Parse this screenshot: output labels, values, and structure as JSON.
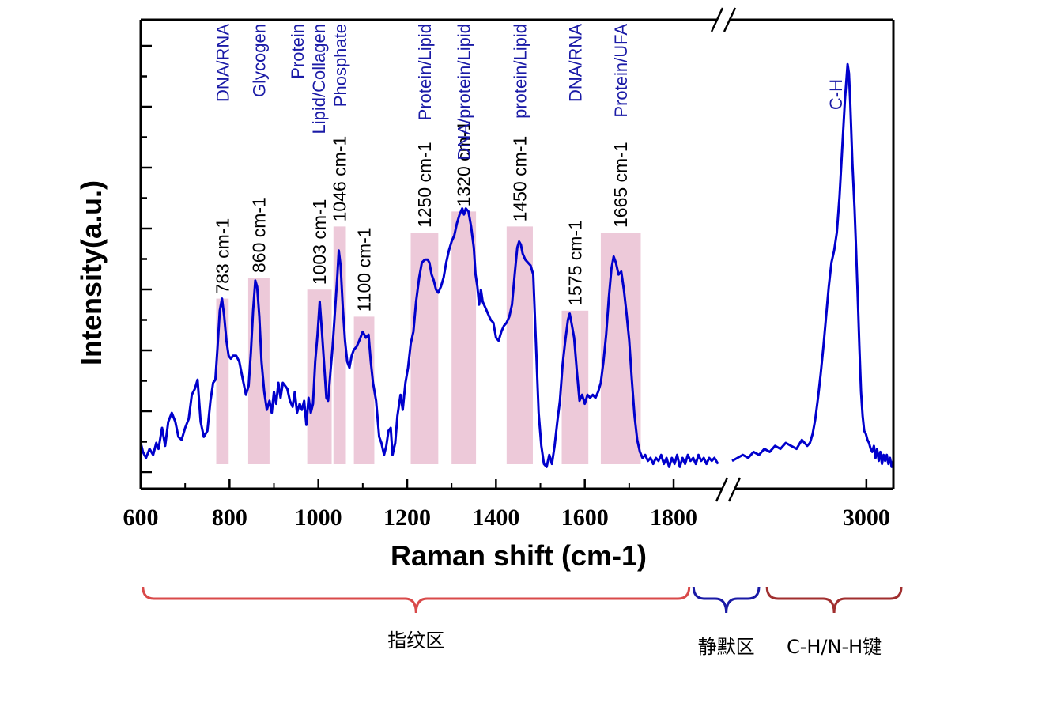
{
  "chart_data": {
    "type": "line",
    "title": "",
    "xlabel": "Raman shift (cm-1)",
    "ylabel": "Intensity(a.u.)",
    "xlim": [
      600,
      3100
    ],
    "axis_break": {
      "left_end": 1900,
      "right_start": 2500
    },
    "x_ticks": [
      600,
      800,
      1000,
      1200,
      1400,
      1600,
      1800,
      3000
    ],
    "x_tick_labels": [
      "600",
      "800",
      "1000",
      "1200",
      "1400",
      "1600",
      "1800",
      "3000"
    ],
    "grid": false,
    "series_color": "#0000cc",
    "band_color": "#edc9d9",
    "series": [
      {
        "values_left": [
          [
            600,
            0.1
          ],
          [
            605,
            0.07
          ],
          [
            612,
            0.05
          ],
          [
            620,
            0.08
          ],
          [
            628,
            0.06
          ],
          [
            635,
            0.1
          ],
          [
            640,
            0.08
          ],
          [
            648,
            0.15
          ],
          [
            655,
            0.09
          ],
          [
            662,
            0.17
          ],
          [
            670,
            0.2
          ],
          [
            678,
            0.17
          ],
          [
            685,
            0.12
          ],
          [
            692,
            0.11
          ],
          [
            700,
            0.15
          ],
          [
            708,
            0.18
          ],
          [
            715,
            0.26
          ],
          [
            722,
            0.28
          ],
          [
            728,
            0.31
          ],
          [
            735,
            0.17
          ],
          [
            742,
            0.12
          ],
          [
            750,
            0.14
          ],
          [
            757,
            0.24
          ],
          [
            763,
            0.3
          ],
          [
            768,
            0.31
          ],
          [
            773,
            0.42
          ],
          [
            778,
            0.54
          ],
          [
            783,
            0.58
          ],
          [
            788,
            0.52
          ],
          [
            793,
            0.44
          ],
          [
            798,
            0.39
          ],
          [
            803,
            0.38
          ],
          [
            808,
            0.39
          ],
          [
            815,
            0.39
          ],
          [
            822,
            0.37
          ],
          [
            830,
            0.31
          ],
          [
            837,
            0.26
          ],
          [
            843,
            0.29
          ],
          [
            848,
            0.4
          ],
          [
            853,
            0.54
          ],
          [
            858,
            0.64
          ],
          [
            862,
            0.62
          ],
          [
            867,
            0.52
          ],
          [
            872,
            0.37
          ],
          [
            878,
            0.27
          ],
          [
            884,
            0.21
          ],
          [
            890,
            0.24
          ],
          [
            895,
            0.2
          ],
          [
            900,
            0.27
          ],
          [
            905,
            0.23
          ],
          [
            910,
            0.3
          ],
          [
            915,
            0.25
          ],
          [
            920,
            0.3
          ],
          [
            925,
            0.29
          ],
          [
            930,
            0.28
          ],
          [
            936,
            0.24
          ],
          [
            942,
            0.22
          ],
          [
            947,
            0.27
          ],
          [
            952,
            0.2
          ],
          [
            958,
            0.23
          ],
          [
            963,
            0.21
          ],
          [
            968,
            0.24
          ],
          [
            973,
            0.16
          ],
          [
            978,
            0.25
          ],
          [
            983,
            0.2
          ],
          [
            988,
            0.23
          ],
          [
            993,
            0.37
          ],
          [
            998,
            0.46
          ],
          [
            1003,
            0.57
          ],
          [
            1008,
            0.47
          ],
          [
            1013,
            0.36
          ],
          [
            1018,
            0.25
          ],
          [
            1022,
            0.24
          ],
          [
            1027,
            0.33
          ],
          [
            1032,
            0.42
          ],
          [
            1038,
            0.55
          ],
          [
            1043,
            0.66
          ],
          [
            1046,
            0.74
          ],
          [
            1050,
            0.69
          ],
          [
            1055,
            0.55
          ],
          [
            1060,
            0.44
          ],
          [
            1065,
            0.37
          ],
          [
            1070,
            0.35
          ],
          [
            1075,
            0.39
          ],
          [
            1080,
            0.41
          ],
          [
            1086,
            0.42
          ],
          [
            1092,
            0.44
          ],
          [
            1100,
            0.47
          ],
          [
            1107,
            0.45
          ],
          [
            1113,
            0.46
          ],
          [
            1118,
            0.37
          ],
          [
            1123,
            0.3
          ],
          [
            1130,
            0.24
          ],
          [
            1137,
            0.12
          ],
          [
            1142,
            0.1
          ],
          [
            1148,
            0.06
          ],
          [
            1153,
            0.09
          ],
          [
            1158,
            0.14
          ],
          [
            1163,
            0.15
          ],
          [
            1167,
            0.06
          ],
          [
            1173,
            0.1
          ],
          [
            1178,
            0.19
          ],
          [
            1185,
            0.26
          ],
          [
            1190,
            0.21
          ],
          [
            1196,
            0.3
          ],
          [
            1202,
            0.35
          ],
          [
            1208,
            0.43
          ],
          [
            1214,
            0.47
          ],
          [
            1220,
            0.57
          ],
          [
            1227,
            0.65
          ],
          [
            1233,
            0.7
          ],
          [
            1240,
            0.71
          ],
          [
            1246,
            0.71
          ],
          [
            1250,
            0.7
          ],
          [
            1255,
            0.66
          ],
          [
            1260,
            0.64
          ],
          [
            1265,
            0.61
          ],
          [
            1270,
            0.6
          ],
          [
            1276,
            0.62
          ],
          [
            1282,
            0.65
          ],
          [
            1288,
            0.7
          ],
          [
            1294,
            0.74
          ],
          [
            1300,
            0.77
          ],
          [
            1306,
            0.79
          ],
          [
            1312,
            0.83
          ],
          [
            1318,
            0.86
          ],
          [
            1324,
            0.88
          ],
          [
            1328,
            0.86
          ],
          [
            1332,
            0.88
          ],
          [
            1338,
            0.87
          ],
          [
            1344,
            0.82
          ],
          [
            1350,
            0.75
          ],
          [
            1354,
            0.66
          ],
          [
            1358,
            0.62
          ],
          [
            1362,
            0.56
          ],
          [
            1366,
            0.61
          ],
          [
            1370,
            0.57
          ],
          [
            1376,
            0.55
          ],
          [
            1382,
            0.53
          ],
          [
            1388,
            0.51
          ],
          [
            1394,
            0.5
          ],
          [
            1400,
            0.45
          ],
          [
            1406,
            0.44
          ],
          [
            1412,
            0.47
          ],
          [
            1418,
            0.49
          ],
          [
            1424,
            0.5
          ],
          [
            1430,
            0.52
          ],
          [
            1436,
            0.56
          ],
          [
            1442,
            0.66
          ],
          [
            1448,
            0.75
          ],
          [
            1452,
            0.77
          ],
          [
            1456,
            0.76
          ],
          [
            1460,
            0.73
          ],
          [
            1466,
            0.71
          ],
          [
            1472,
            0.7
          ],
          [
            1478,
            0.69
          ],
          [
            1484,
            0.66
          ],
          [
            1490,
            0.43
          ],
          [
            1496,
            0.2
          ],
          [
            1502,
            0.09
          ],
          [
            1508,
            0.03
          ],
          [
            1514,
            0.02
          ],
          [
            1520,
            0.06
          ],
          [
            1526,
            0.03
          ],
          [
            1532,
            0.09
          ],
          [
            1538,
            0.17
          ],
          [
            1544,
            0.24
          ],
          [
            1550,
            0.36
          ],
          [
            1556,
            0.44
          ],
          [
            1562,
            0.51
          ],
          [
            1566,
            0.53
          ],
          [
            1570,
            0.5
          ],
          [
            1576,
            0.45
          ],
          [
            1582,
            0.34
          ],
          [
            1588,
            0.24
          ],
          [
            1594,
            0.26
          ],
          [
            1600,
            0.23
          ],
          [
            1606,
            0.26
          ],
          [
            1612,
            0.25
          ],
          [
            1618,
            0.26
          ],
          [
            1624,
            0.25
          ],
          [
            1630,
            0.27
          ],
          [
            1636,
            0.3
          ],
          [
            1642,
            0.37
          ],
          [
            1648,
            0.46
          ],
          [
            1654,
            0.58
          ],
          [
            1660,
            0.68
          ],
          [
            1665,
            0.72
          ],
          [
            1670,
            0.7
          ],
          [
            1676,
            0.66
          ],
          [
            1682,
            0.67
          ],
          [
            1688,
            0.61
          ],
          [
            1694,
            0.53
          ],
          [
            1700,
            0.44
          ],
          [
            1706,
            0.31
          ],
          [
            1712,
            0.19
          ],
          [
            1718,
            0.11
          ],
          [
            1724,
            0.07
          ],
          [
            1730,
            0.05
          ],
          [
            1736,
            0.06
          ],
          [
            1742,
            0.04
          ],
          [
            1748,
            0.05
          ],
          [
            1754,
            0.03
          ],
          [
            1760,
            0.05
          ],
          [
            1766,
            0.04
          ],
          [
            1772,
            0.06
          ],
          [
            1778,
            0.03
          ],
          [
            1784,
            0.05
          ],
          [
            1790,
            0.02
          ],
          [
            1796,
            0.05
          ],
          [
            1802,
            0.03
          ],
          [
            1808,
            0.06
          ],
          [
            1814,
            0.02
          ],
          [
            1820,
            0.05
          ],
          [
            1826,
            0.03
          ],
          [
            1832,
            0.06
          ],
          [
            1838,
            0.04
          ],
          [
            1844,
            0.05
          ],
          [
            1850,
            0.03
          ],
          [
            1856,
            0.06
          ],
          [
            1862,
            0.04
          ],
          [
            1868,
            0.05
          ],
          [
            1874,
            0.03
          ],
          [
            1880,
            0.05
          ],
          [
            1886,
            0.04
          ],
          [
            1892,
            0.05
          ],
          [
            1900,
            0.03
          ]
        ],
        "values_right": [
          [
            2500,
            0.04
          ],
          [
            2520,
            0.05
          ],
          [
            2540,
            0.06
          ],
          [
            2560,
            0.05
          ],
          [
            2580,
            0.07
          ],
          [
            2600,
            0.06
          ],
          [
            2620,
            0.08
          ],
          [
            2640,
            0.07
          ],
          [
            2660,
            0.09
          ],
          [
            2680,
            0.08
          ],
          [
            2700,
            0.1
          ],
          [
            2720,
            0.09
          ],
          [
            2740,
            0.08
          ],
          [
            2760,
            0.11
          ],
          [
            2780,
            0.09
          ],
          [
            2790,
            0.1
          ],
          [
            2800,
            0.13
          ],
          [
            2810,
            0.18
          ],
          [
            2820,
            0.25
          ],
          [
            2830,
            0.33
          ],
          [
            2840,
            0.42
          ],
          [
            2850,
            0.52
          ],
          [
            2860,
            0.62
          ],
          [
            2870,
            0.7
          ],
          [
            2880,
            0.74
          ],
          [
            2890,
            0.8
          ],
          [
            2900,
            0.92
          ],
          [
            2910,
            1.08
          ],
          [
            2920,
            1.24
          ],
          [
            2930,
            1.36
          ],
          [
            2935,
            1.33
          ],
          [
            2940,
            1.23
          ],
          [
            2948,
            1.03
          ],
          [
            2956,
            0.88
          ],
          [
            2962,
            0.74
          ],
          [
            2968,
            0.58
          ],
          [
            2974,
            0.42
          ],
          [
            2980,
            0.27
          ],
          [
            2986,
            0.19
          ],
          [
            2992,
            0.14
          ],
          [
            2998,
            0.13
          ],
          [
            3004,
            0.11
          ],
          [
            3010,
            0.1
          ],
          [
            3016,
            0.08
          ],
          [
            3022,
            0.07
          ],
          [
            3028,
            0.09
          ],
          [
            3034,
            0.05
          ],
          [
            3040,
            0.08
          ],
          [
            3046,
            0.04
          ],
          [
            3052,
            0.07
          ],
          [
            3058,
            0.03
          ],
          [
            3064,
            0.06
          ],
          [
            3070,
            0.04
          ],
          [
            3076,
            0.06
          ],
          [
            3082,
            0.03
          ],
          [
            3088,
            0.05
          ],
          [
            3094,
            0.02
          ],
          [
            3100,
            0.04
          ]
        ]
      }
    ],
    "bands": [
      {
        "x0": 770,
        "x1": 798,
        "y": 0.58,
        "peak": "783 cm-1",
        "assignment": [
          "DNA/RNA"
        ]
      },
      {
        "x0": 842,
        "x1": 890,
        "y": 0.65,
        "peak": "860 cm-1",
        "assignment": [
          "Glycogen"
        ]
      },
      {
        "x0": 975,
        "x1": 1030,
        "y": 0.61,
        "peak": "1003 cm-1",
        "assignment": [
          "Protein",
          "Lipid/Collagen",
          "Phosphate"
        ]
      },
      {
        "x0": 1034,
        "x1": 1062,
        "y": 0.82,
        "peak": "1046 cm-1",
        "assignment": []
      },
      {
        "x0": 1080,
        "x1": 1126,
        "y": 0.52,
        "peak": "1100 cm-1",
        "assignment": []
      },
      {
        "x0": 1208,
        "x1": 1270,
        "y": 0.8,
        "peak": "1250 cm-1",
        "assignment": [
          "Protein/Lipid"
        ]
      },
      {
        "x0": 1300,
        "x1": 1355,
        "y": 0.87,
        "peak": "1320 cm-1",
        "assignment": [
          "DNA/protein/Lipid"
        ]
      },
      {
        "x0": 1424,
        "x1": 1483,
        "y": 0.82,
        "peak": "1450 cm-1",
        "assignment": [
          "protein/Lipid"
        ]
      },
      {
        "x0": 1548,
        "x1": 1608,
        "y": 0.54,
        "peak": "1575 cm-1",
        "assignment": [
          "DNA/RNA"
        ]
      },
      {
        "x0": 1636,
        "x1": 1726,
        "y": 0.8,
        "peak": "1665 cm-1",
        "assignment": [
          "Protein/UFA"
        ]
      }
    ],
    "annotations": [
      {
        "text": "C-H",
        "x": 2880,
        "y": 1.25
      }
    ],
    "regions": [
      {
        "label": "指纹区",
        "x0": 605,
        "x1": 1835,
        "color": "#d94a4a"
      },
      {
        "label": "静默区",
        "x0": 1845,
        "x1": 2600,
        "color": "#1a1aa6"
      },
      {
        "label": "C-H/N-H键",
        "x0": 2630,
        "x1": 3130,
        "color": "#a12f2f"
      }
    ]
  }
}
